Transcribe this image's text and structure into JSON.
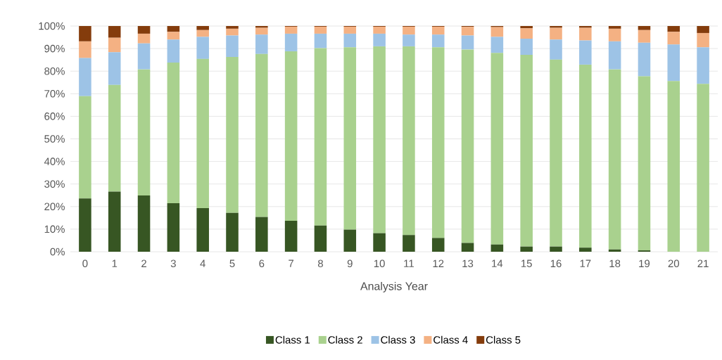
{
  "chart_data": {
    "type": "bar",
    "stacked": true,
    "xlabel": "Analysis Year",
    "categories": [
      "0",
      "1",
      "2",
      "3",
      "4",
      "5",
      "6",
      "7",
      "8",
      "9",
      "10",
      "11",
      "12",
      "13",
      "14",
      "15",
      "16",
      "17",
      "18",
      "19",
      "20",
      "21"
    ],
    "series": [
      {
        "name": "Class 1",
        "color": "#375623",
        "values": [
          23.6,
          26.6,
          24.9,
          21.5,
          19.3,
          17.2,
          15.4,
          13.7,
          11.6,
          9.8,
          8.2,
          7.4,
          6.1,
          3.9,
          3.2,
          2.3,
          2.3,
          1.8,
          1.0,
          0.6,
          0,
          0
        ]
      },
      {
        "name": "Class 2",
        "color": "#a9d18e",
        "values": [
          45.3,
          47.3,
          55.9,
          62.3,
          66.1,
          69.1,
          72.2,
          75.1,
          78.6,
          80.8,
          82.8,
          83.6,
          84.5,
          85.7,
          84.9,
          84.9,
          82.8,
          81.1,
          79.8,
          77.1,
          75.6,
          74.4
        ]
      },
      {
        "name": "Class 3",
        "color": "#9dc3e6",
        "values": [
          16.9,
          14.5,
          11.5,
          10.2,
          9.8,
          9.5,
          8.6,
          7.8,
          6.4,
          6.0,
          5.6,
          5.2,
          5.6,
          6.2,
          7.1,
          7.2,
          8.9,
          10.7,
          12.4,
          14.9,
          16.2,
          16.2
        ]
      },
      {
        "name": "Class 4",
        "color": "#f4b183",
        "values": [
          7.4,
          6.4,
          4.3,
          3.4,
          3.0,
          3.0,
          3.0,
          3.1,
          3.1,
          3.1,
          3.1,
          3.5,
          3.5,
          3.8,
          4.3,
          4.6,
          5.2,
          5.6,
          5.6,
          5.6,
          5.6,
          6.3
        ]
      },
      {
        "name": "Class 5",
        "color": "#843c0c",
        "values": [
          6.8,
          5.2,
          3.4,
          2.6,
          1.8,
          1.2,
          0.8,
          0.3,
          0.3,
          0.3,
          0.3,
          0.3,
          0.3,
          0.4,
          0.5,
          1.0,
          0.8,
          0.8,
          1.2,
          1.8,
          2.6,
          3.1
        ]
      }
    ],
    "ylim": [
      0,
      100
    ],
    "yticks": [
      {
        "value": 0,
        "label": "0%"
      },
      {
        "value": 10,
        "label": "10%"
      },
      {
        "value": 20,
        "label": "20%"
      },
      {
        "value": 30,
        "label": "30%"
      },
      {
        "value": 40,
        "label": "40%"
      },
      {
        "value": 50,
        "label": "50%"
      },
      {
        "value": 60,
        "label": "60%"
      },
      {
        "value": 70,
        "label": "70%"
      },
      {
        "value": 80,
        "label": "80%"
      },
      {
        "value": 90,
        "label": "90%"
      },
      {
        "value": 100,
        "label": "100%"
      }
    ],
    "grid": "y",
    "legend": "bottom"
  }
}
